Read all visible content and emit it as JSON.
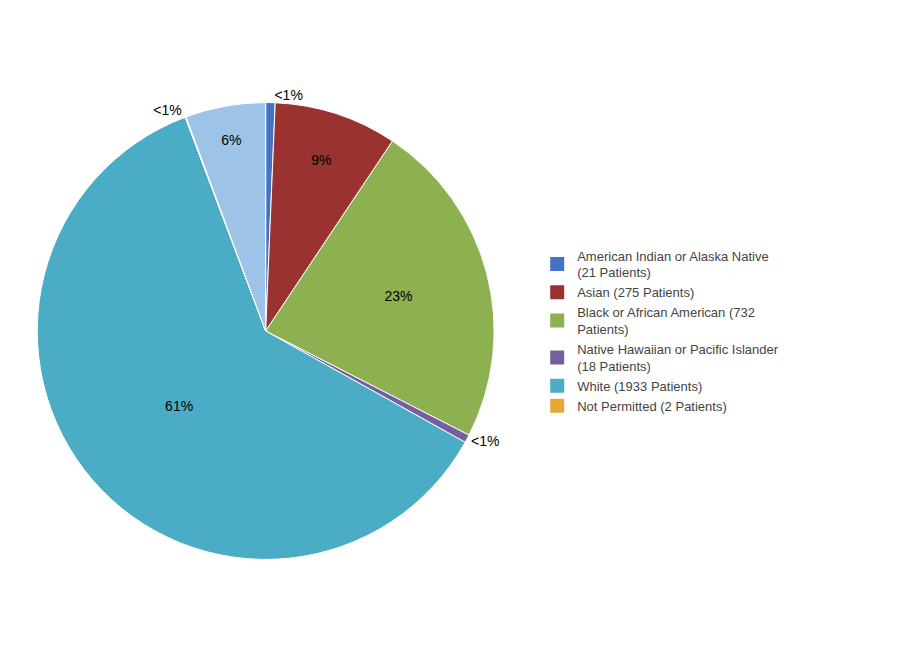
{
  "chart_data": {
    "type": "pie",
    "categories": [
      "American Indian or Alaska Native\n(21 Patients)",
      "Asian (275 Patients)",
      "Black or African American (732\nPatients)",
      "Native Hawaiian or Pacific Islander\n(18 Patients)",
      "White (1933 Patients)",
      "Not Permitted (2 Patients)",
      null
    ],
    "values": [
      21,
      275,
      732,
      18,
      1933,
      2,
      179
    ],
    "value_labels": [
      "<1%",
      "9%",
      "23%",
      "<1%",
      "61%",
      "<1%",
      "6%"
    ],
    "colors": [
      "#4472C4",
      "#9B3232",
      "#8DB050",
      "#7460A0",
      "#4BACC6",
      "#E8A835",
      "#9DC3E6"
    ],
    "data_labels": true,
    "legend": "right"
  }
}
